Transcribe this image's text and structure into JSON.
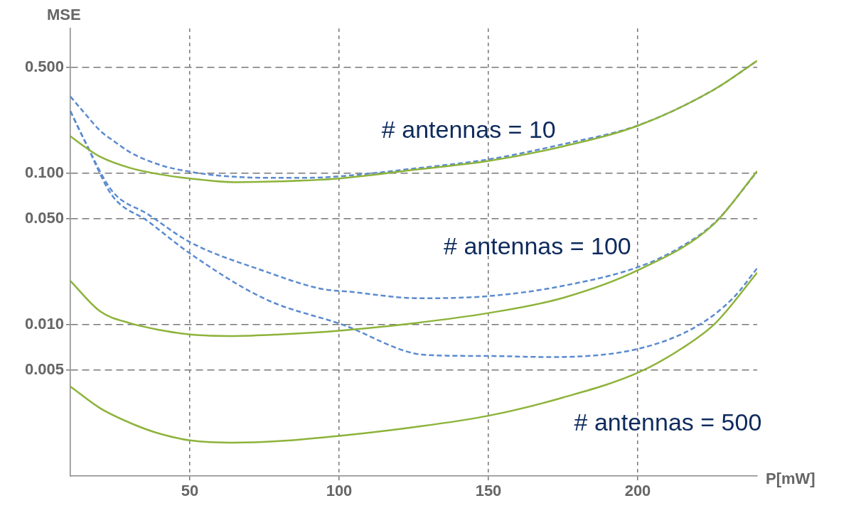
{
  "chart_data": {
    "type": "line",
    "xlabel": "P[mW]",
    "ylabel": "MSE",
    "log": "y",
    "grid": true,
    "legend": false,
    "marker": "none",
    "xlim": [
      10,
      240
    ],
    "xticks": [
      50,
      100,
      150,
      200
    ],
    "ylim": [
      0.001,
      0.9
    ],
    "yticks": [
      {
        "value": 0.005,
        "label": "0.005"
      },
      {
        "value": 0.01,
        "label": "0.010"
      },
      {
        "value": 0.05,
        "label": "0.050"
      },
      {
        "value": 0.1,
        "label": "0.100"
      },
      {
        "value": 0.5,
        "label": "0.500"
      }
    ],
    "series": [
      {
        "color": "#8db33a",
        "line_style": "solid",
        "x": [
          10,
          15,
          20,
          30,
          40,
          50,
          65,
          80,
          100,
          125,
          150,
          175,
          200,
          225,
          240
        ],
        "values": [
          0.175,
          0.148,
          0.128,
          0.108,
          0.098,
          0.092,
          0.087,
          0.088,
          0.092,
          0.105,
          0.12,
          0.15,
          0.205,
          0.35,
          0.55
        ]
      },
      {
        "color": "#5b8bd0",
        "line_style": "dashed",
        "x": [
          10,
          15,
          20,
          25,
          30,
          40,
          50,
          60,
          75,
          90,
          100,
          125,
          150,
          175,
          200,
          225,
          240
        ],
        "values": [
          0.32,
          0.245,
          0.19,
          0.16,
          0.137,
          0.113,
          0.102,
          0.096,
          0.093,
          0.093,
          0.095,
          0.107,
          0.123,
          0.155,
          0.206,
          0.35,
          0.55
        ]
      },
      {
        "color": "#8db33a",
        "line_style": "solid",
        "x": [
          10,
          20,
          30,
          40,
          50,
          65,
          80,
          100,
          125,
          150,
          175,
          200,
          225,
          240
        ],
        "values": [
          0.0194,
          0.0122,
          0.0102,
          0.0092,
          0.0086,
          0.0084,
          0.0086,
          0.0091,
          0.0102,
          0.0119,
          0.015,
          0.0228,
          0.045,
          0.103
        ]
      },
      {
        "color": "#5b8bd0",
        "line_style": "dashed",
        "x": [
          10,
          15,
          24,
          36,
          50,
          75,
          94,
          103,
          127,
          150,
          175,
          201,
          215,
          226,
          240
        ],
        "values": [
          0.256,
          0.16,
          0.076,
          0.0534,
          0.035,
          0.0225,
          0.0172,
          0.0165,
          0.0149,
          0.0154,
          0.018,
          0.0243,
          0.033,
          0.0475,
          0.102
        ]
      },
      {
        "color": "#8db33a",
        "line_style": "solid",
        "x": [
          10,
          20,
          31,
          40,
          50,
          65,
          80,
          100,
          125,
          150,
          175,
          200,
          215,
          226,
          240
        ],
        "values": [
          0.0039,
          0.0028,
          0.0022,
          0.0019,
          0.00172,
          0.00166,
          0.0017,
          0.00184,
          0.0021,
          0.0025,
          0.0033,
          0.0048,
          0.007,
          0.0102,
          0.022
        ]
      },
      {
        "color": "#5b8bd0",
        "line_style": "dashed",
        "x": [
          10,
          15,
          24,
          36,
          50,
          75,
          101,
          129,
          150,
          170,
          200,
          220,
          232,
          240
        ],
        "values": [
          0.256,
          0.16,
          0.071,
          0.048,
          0.0295,
          0.0148,
          0.01,
          0.0063,
          0.0062,
          0.0061,
          0.0069,
          0.0098,
          0.015,
          0.0235
        ]
      }
    ],
    "annotations": [
      "# antennas = 10",
      "# antennas = 100",
      "# antennas = 500"
    ]
  }
}
